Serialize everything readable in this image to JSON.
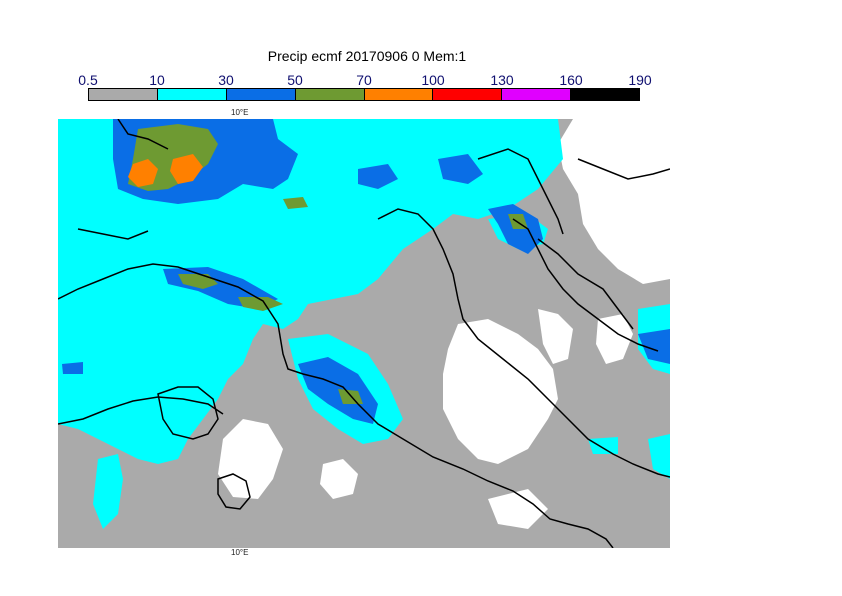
{
  "title": "Precip ecmf 20170906 0 Mem:1",
  "legend": {
    "labels": [
      "0.5",
      "10",
      "30",
      "50",
      "70",
      "100",
      "130",
      "160",
      "190"
    ],
    "colors": [
      "#aaaaaa",
      "#00ffff",
      "#0a6ee6",
      "#6e9a32",
      "#ff8000",
      "#ff0000",
      "#e000ff",
      "#000000"
    ]
  },
  "map": {
    "lon_label_top": "10°E",
    "lon_label_bottom": "10°E",
    "background_color": "#aaaaaa"
  }
}
